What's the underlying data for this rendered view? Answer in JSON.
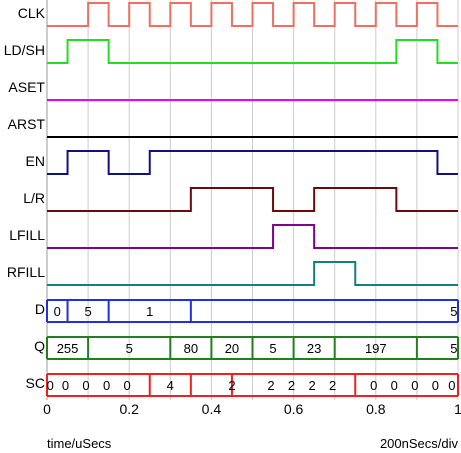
{
  "diagram": {
    "time_unit_label": "time/uSecs",
    "scale_label": "200nSecs/div",
    "time_range": [
      0,
      1
    ],
    "grid_step": 0.1,
    "ticks": [
      {
        "t": 0,
        "label": "0"
      },
      {
        "t": 0.2,
        "label": "0.2"
      },
      {
        "t": 0.4,
        "label": "0.4"
      },
      {
        "t": 0.6,
        "label": "0.6"
      },
      {
        "t": 0.8,
        "label": "0.8"
      },
      {
        "t": 1,
        "label": "1"
      }
    ],
    "signals": [
      {
        "name": "CLK",
        "type": "clock",
        "color": "#f07060",
        "period": 0.05,
        "phase": 0.1,
        "start_level": 0
      },
      {
        "name": "LD/SH",
        "type": "digital",
        "color": "#22dd22",
        "initial": 0,
        "edges": [
          0.05,
          0.15,
          0.85,
          0.95
        ]
      },
      {
        "name": "ASET",
        "type": "digital",
        "color": "#ee00ee",
        "initial": 0,
        "edges": []
      },
      {
        "name": "ARST",
        "type": "digital",
        "color": "#000000",
        "initial": 0,
        "edges": []
      },
      {
        "name": "EN",
        "type": "digital",
        "color": "#101080",
        "initial": 0,
        "edges": [
          0.05,
          0.15,
          0.25,
          0.95
        ]
      },
      {
        "name": "L/R",
        "type": "digital",
        "color": "#6a0a0a",
        "initial": 0,
        "edges": [
          0.35,
          0.55,
          0.65,
          0.85
        ]
      },
      {
        "name": "LFILL",
        "type": "digital",
        "color": "#800090",
        "initial": 0,
        "edges": [
          0.55,
          0.65
        ]
      },
      {
        "name": "RFILL",
        "type": "digital",
        "color": "#108080",
        "initial": 0,
        "edges": [
          0.65,
          0.75
        ]
      },
      {
        "name": "D",
        "type": "bus",
        "color": "#2030dd",
        "transitions": [
          0.05,
          0.15,
          0.35
        ],
        "values": [
          {
            "t": 0.025,
            "text": "0"
          },
          {
            "t": 0.1,
            "text": "5"
          },
          {
            "t": 0.25,
            "text": "1"
          },
          {
            "t": 0.99,
            "text": "5"
          }
        ]
      },
      {
        "name": "Q",
        "type": "bus",
        "color": "#208020",
        "transitions": [
          0.1,
          0.3,
          0.4,
          0.5,
          0.6,
          0.7,
          0.9
        ],
        "values": [
          {
            "t": 0.05,
            "text": "255"
          },
          {
            "t": 0.2,
            "text": "5"
          },
          {
            "t": 0.35,
            "text": "80"
          },
          {
            "t": 0.45,
            "text": "20"
          },
          {
            "t": 0.55,
            "text": "5"
          },
          {
            "t": 0.65,
            "text": "23"
          },
          {
            "t": 0.8,
            "text": "197"
          },
          {
            "t": 0.99,
            "text": "5"
          }
        ]
      },
      {
        "name": "SC",
        "type": "bus",
        "color": "#ee2020",
        "transitions": [
          0.25,
          0.35,
          0.45,
          0.75
        ],
        "values": [
          {
            "t": 0.008,
            "text": "0"
          },
          {
            "t": 0.045,
            "text": "0"
          },
          {
            "t": 0.095,
            "text": "0"
          },
          {
            "t": 0.145,
            "text": "0"
          },
          {
            "t": 0.195,
            "text": "0"
          },
          {
            "t": 0.3,
            "text": "4"
          },
          {
            "t": 0.45,
            "text": "2"
          },
          {
            "t": 0.545,
            "text": "2"
          },
          {
            "t": 0.595,
            "text": "2"
          },
          {
            "t": 0.645,
            "text": "2"
          },
          {
            "t": 0.695,
            "text": "2"
          },
          {
            "t": 0.795,
            "text": "0"
          },
          {
            "t": 0.845,
            "text": "0"
          },
          {
            "t": 0.895,
            "text": "0"
          },
          {
            "t": 0.945,
            "text": "0"
          },
          {
            "t": 0.985,
            "text": "0"
          }
        ]
      }
    ]
  }
}
